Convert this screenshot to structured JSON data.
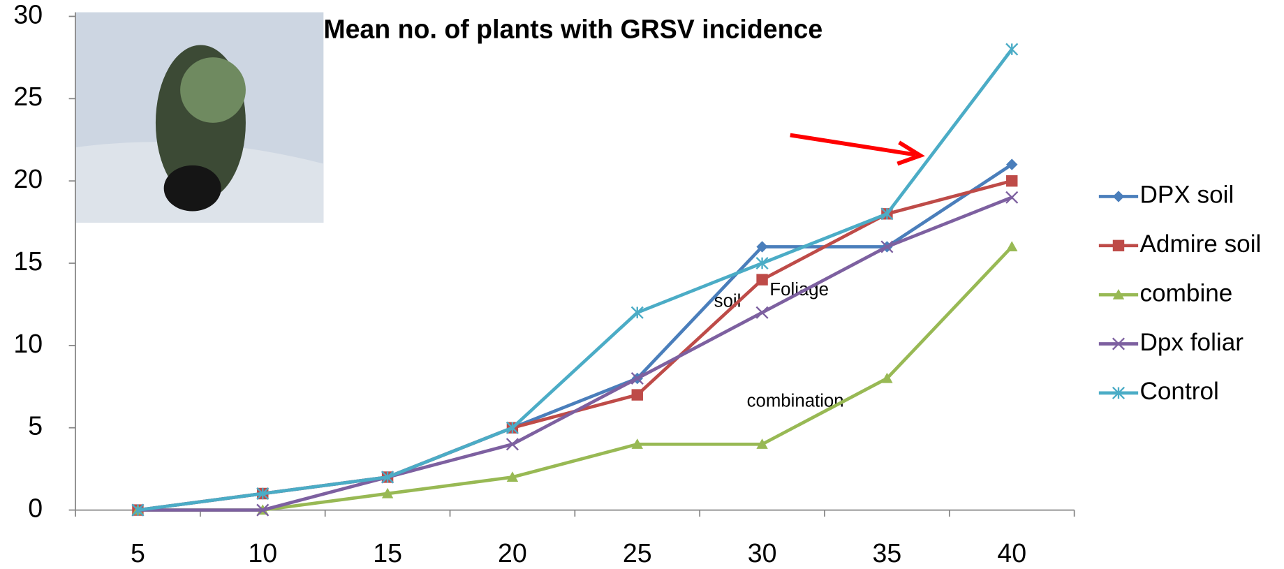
{
  "chart_data": {
    "type": "line",
    "title": "Mean no. of plants with GRSV incidence",
    "categories": [
      5,
      10,
      15,
      20,
      25,
      30,
      35,
      40
    ],
    "series": [
      {
        "name": "DPX soil",
        "color": "#4a7ebb",
        "marker": "diamond",
        "values": [
          0,
          1,
          2,
          5,
          8,
          16,
          16,
          21
        ]
      },
      {
        "name": "Admire soil",
        "color": "#be4b48",
        "marker": "square",
        "values": [
          0,
          1,
          2,
          5,
          7,
          14,
          18,
          20
        ]
      },
      {
        "name": "combine",
        "color": "#98b954",
        "marker": "triangle",
        "values": [
          0,
          0,
          1,
          2,
          4,
          4,
          8,
          16
        ]
      },
      {
        "name": "Dpx foliar",
        "color": "#7d60a0",
        "marker": "x",
        "values": [
          0,
          0,
          2,
          4,
          8,
          12,
          16,
          19
        ]
      },
      {
        "name": "Control",
        "color": "#4bacc6",
        "marker": "star",
        "values": [
          0,
          1,
          2,
          5,
          12,
          15,
          18,
          28
        ]
      }
    ],
    "ylim": [
      0,
      30
    ],
    "yticks": [
      0,
      5,
      10,
      15,
      20,
      25,
      30
    ],
    "legend": "right",
    "annotations": [
      "soil",
      "Foliage",
      "combination"
    ]
  }
}
